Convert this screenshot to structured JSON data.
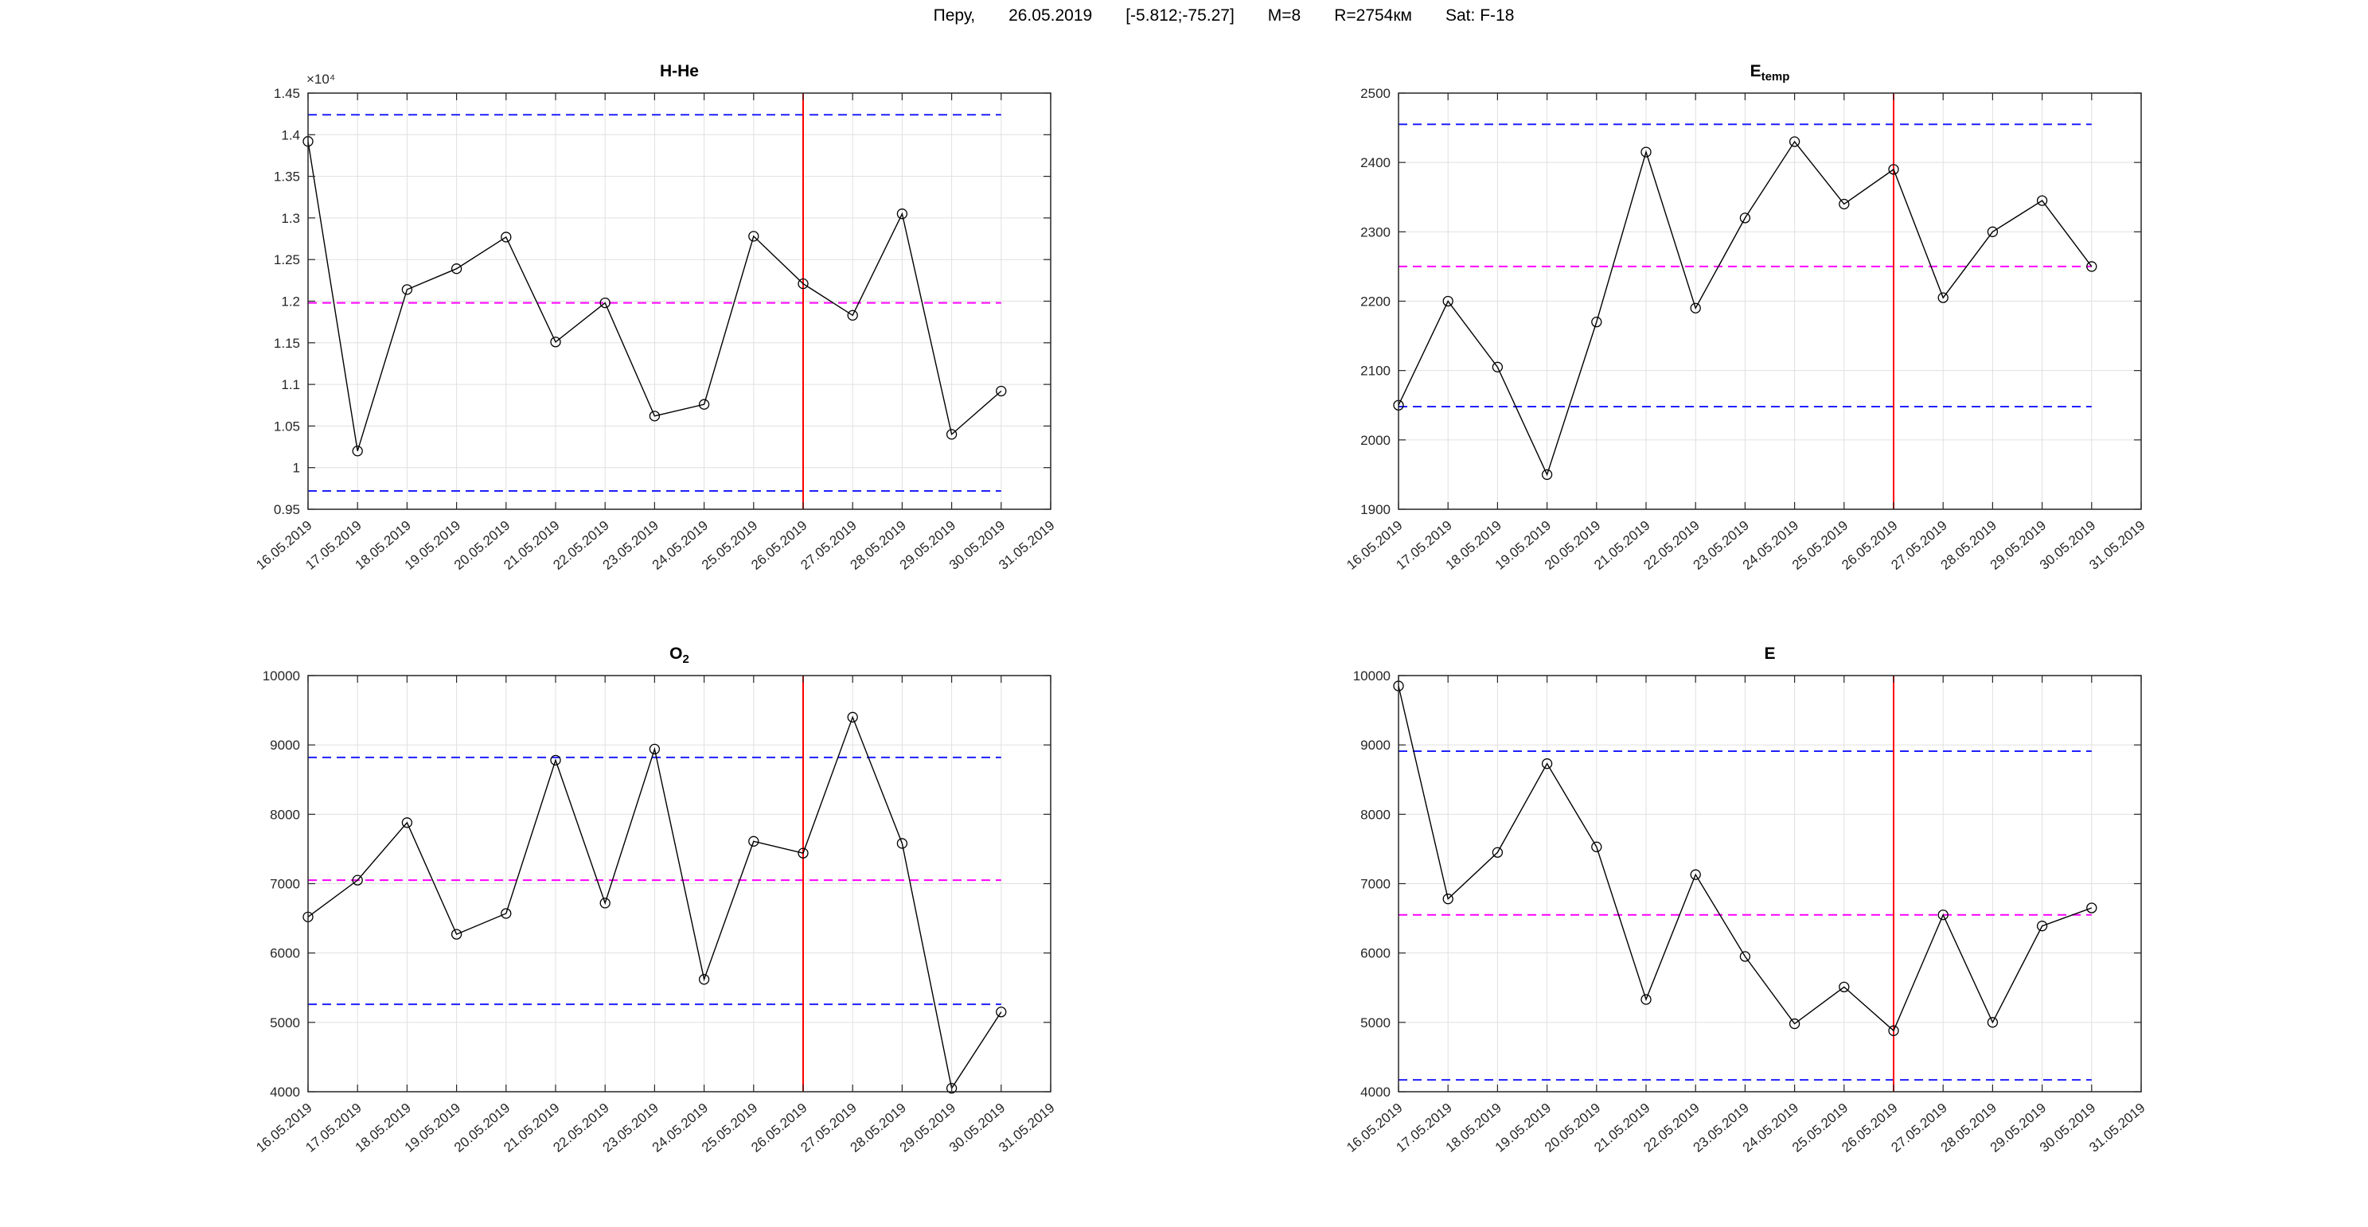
{
  "header": {
    "segments": [
      "Перу,",
      "26.05.2019",
      "[-5.812;-75.27]",
      "M=8",
      "R=2754км",
      "Sat: F-18"
    ]
  },
  "colors": {
    "series": "#000000",
    "bound": "#1f1fff",
    "mean": "#ff00ff",
    "event": "#ff0000",
    "grid": "#e0e0e0",
    "axis": "#262626",
    "text": "#262626",
    "background": "#ffffff"
  },
  "x_axis_tick_labels": [
    "16.05.2019",
    "17.05.2019",
    "18.05.2019",
    "19.05.2019",
    "20.05.2019",
    "21.05.2019",
    "22.05.2019",
    "23.05.2019",
    "24.05.2019",
    "25.05.2019",
    "26.05.2019",
    "27.05.2019",
    "28.05.2019",
    "29.05.2019",
    "30.05.2019",
    "31.05.2019"
  ],
  "chart_data": [
    {
      "type": "line",
      "title_main": "H-He",
      "title_sub": "",
      "exponent": "×10⁴",
      "categories": [
        "16.05.2019",
        "17.05.2019",
        "18.05.2019",
        "19.05.2019",
        "20.05.2019",
        "21.05.2019",
        "22.05.2019",
        "23.05.2019",
        "24.05.2019",
        "25.05.2019",
        "26.05.2019",
        "27.05.2019",
        "28.05.2019",
        "29.05.2019",
        "30.05.2019"
      ],
      "values": [
        13920,
        10200,
        12140,
        12390,
        12770,
        11510,
        11980,
        10620,
        10760,
        12780,
        12210,
        11830,
        13050,
        10400,
        10920
      ],
      "upper_bound": 14240,
      "mean": 11980,
      "lower_bound": 9720,
      "event_x": "26.05.2019",
      "ylim": [
        9500,
        14500
      ],
      "ytick_values": [
        9500,
        10000,
        10500,
        11000,
        11500,
        12000,
        12500,
        13000,
        13500,
        14000,
        14500
      ],
      "ytick_labels": [
        "0.95",
        "1",
        "1.05",
        "1.1",
        "1.15",
        "1.2",
        "1.25",
        "1.3",
        "1.35",
        "1.4",
        "1.45"
      ]
    },
    {
      "type": "line",
      "title_main": "E",
      "title_sub": "temp",
      "exponent": "",
      "categories": [
        "16.05.2019",
        "17.05.2019",
        "18.05.2019",
        "19.05.2019",
        "20.05.2019",
        "21.05.2019",
        "22.05.2019",
        "23.05.2019",
        "24.05.2019",
        "25.05.2019",
        "26.05.2019",
        "27.05.2019",
        "28.05.2019",
        "29.05.2019",
        "30.05.2019"
      ],
      "values": [
        2050,
        2200,
        2105,
        1950,
        2170,
        2415,
        2190,
        2320,
        2430,
        2340,
        2390,
        2205,
        2300,
        2345,
        2250
      ],
      "upper_bound": 2455,
      "mean": 2250,
      "lower_bound": 2048,
      "event_x": "26.05.2019",
      "ylim": [
        1900,
        2500
      ],
      "ytick_values": [
        1900,
        2000,
        2100,
        2200,
        2300,
        2400,
        2500
      ],
      "ytick_labels": [
        "1900",
        "2000",
        "2100",
        "2200",
        "2300",
        "2400",
        "2500"
      ]
    },
    {
      "type": "line",
      "title_main": "O",
      "title_sub": "2",
      "exponent": "",
      "categories": [
        "16.05.2019",
        "17.05.2019",
        "18.05.2019",
        "19.05.2019",
        "20.05.2019",
        "21.05.2019",
        "22.05.2019",
        "23.05.2019",
        "24.05.2019",
        "25.05.2019",
        "26.05.2019",
        "27.05.2019",
        "28.05.2019",
        "29.05.2019",
        "30.05.2019"
      ],
      "values": [
        6520,
        7050,
        7880,
        6270,
        6570,
        8780,
        6720,
        8940,
        5620,
        7610,
        7440,
        9400,
        7580,
        4050,
        5150
      ],
      "upper_bound": 8820,
      "mean": 7050,
      "lower_bound": 5260,
      "event_x": "26.05.2019",
      "ylim": [
        4000,
        10000
      ],
      "ytick_values": [
        4000,
        5000,
        6000,
        7000,
        8000,
        9000,
        10000
      ],
      "ytick_labels": [
        "4000",
        "5000",
        "6000",
        "7000",
        "8000",
        "9000",
        "10000"
      ]
    },
    {
      "type": "line",
      "title_main": "E",
      "title_sub": "",
      "exponent": "",
      "categories": [
        "16.05.2019",
        "17.05.2019",
        "18.05.2019",
        "19.05.2019",
        "20.05.2019",
        "21.05.2019",
        "22.05.2019",
        "23.05.2019",
        "24.05.2019",
        "25.05.2019",
        "26.05.2019",
        "27.05.2019",
        "28.05.2019",
        "29.05.2019",
        "30.05.2019"
      ],
      "values": [
        9850,
        6780,
        7450,
        8730,
        7530,
        5330,
        7130,
        5950,
        4980,
        5510,
        4880,
        6550,
        5000,
        6390,
        6650
      ],
      "upper_bound": 8910,
      "mean": 6550,
      "lower_bound": 4170,
      "event_x": "26.05.2019",
      "ylim": [
        4000,
        10000
      ],
      "ytick_values": [
        4000,
        5000,
        6000,
        7000,
        8000,
        9000,
        10000
      ],
      "ytick_labels": [
        "4000",
        "5000",
        "6000",
        "7000",
        "8000",
        "9000",
        "10000"
      ]
    }
  ]
}
